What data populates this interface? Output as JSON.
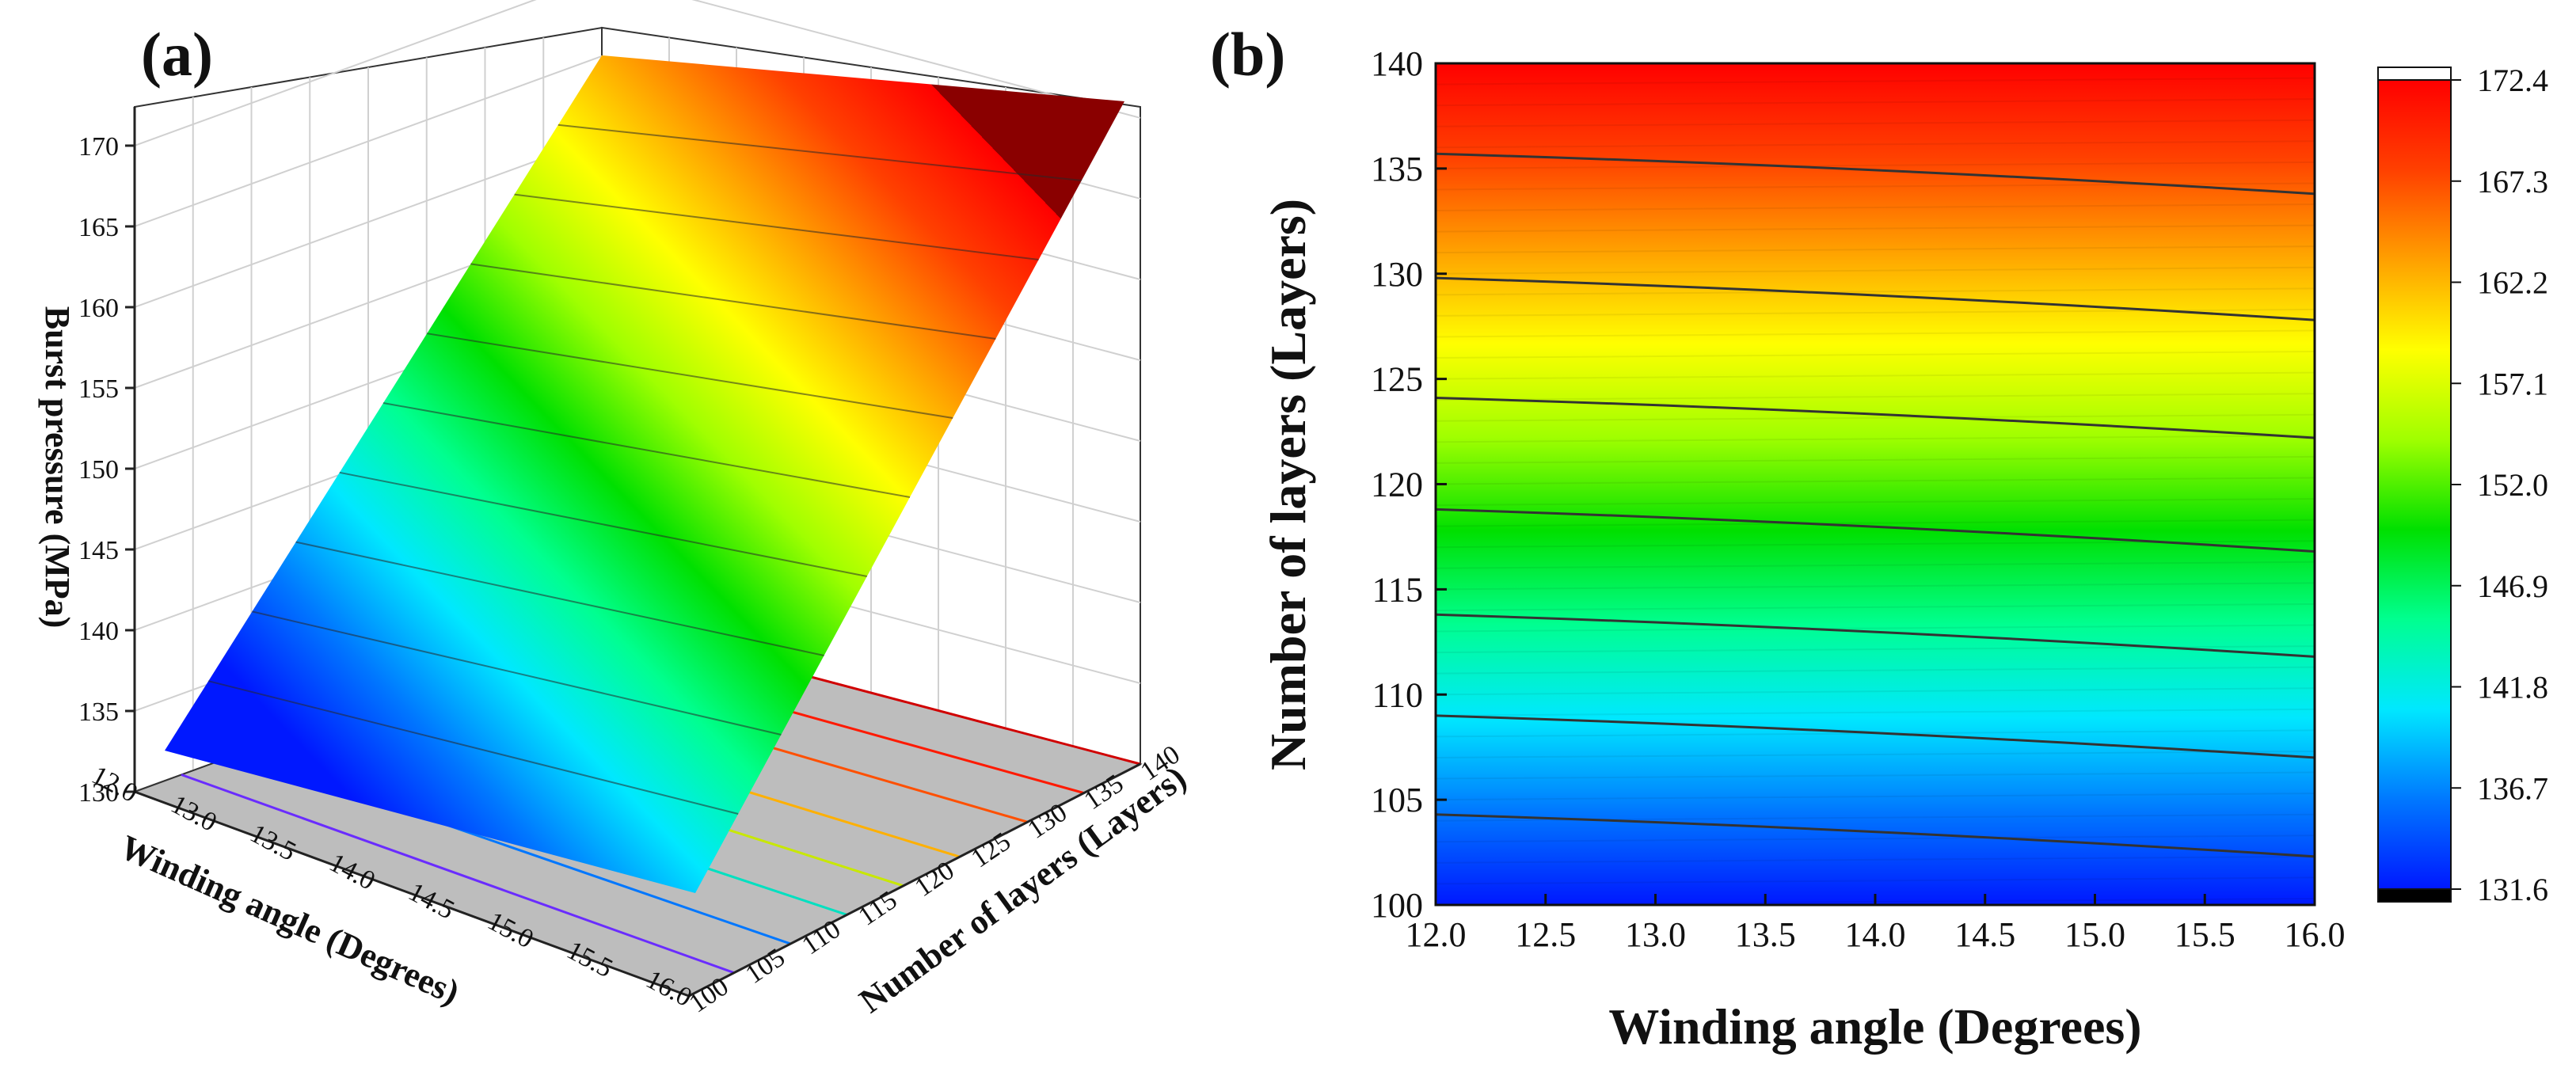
{
  "chart_data": [
    {
      "panel": "(a)",
      "type": "surface3d",
      "title": "",
      "x_axis": {
        "label": "Winding angle (Degrees)",
        "range": [
          12.0,
          16.0
        ],
        "ticks": [
          "12.0",
          "13.0",
          "13.5",
          "14.0",
          "14.5",
          "15.0",
          "15.5",
          "16.0"
        ]
      },
      "y_axis": {
        "label": "Number of layers (Layers)",
        "range": [
          100,
          140
        ],
        "ticks": [
          "100",
          "105",
          "110",
          "115",
          "120",
          "125",
          "130",
          "135",
          "140"
        ]
      },
      "z_axis": {
        "label": "Burst pressure (MPa)",
        "range": [
          130,
          172.4
        ],
        "ticks": [
          "130",
          "135",
          "140",
          "145",
          "150",
          "155",
          "160",
          "165",
          "170"
        ]
      },
      "surface_corners": [
        {
          "winding_angle": 12.0,
          "layers": 100,
          "burst_pressure": 132.5
        },
        {
          "winding_angle": 16.0,
          "layers": 100,
          "burst_pressure": 131.6
        },
        {
          "winding_angle": 12.0,
          "layers": 140,
          "burst_pressure": 172.4
        },
        {
          "winding_angle": 16.0,
          "layers": 140,
          "burst_pressure": 171.3
        }
      ],
      "floor_contour_layers": [
        104,
        109,
        114,
        119,
        124,
        130,
        135,
        140
      ],
      "floor_contour_colors": [
        "#6a2cff",
        "#0077ff",
        "#00e0c0",
        "#c8e800",
        "#ffb000",
        "#ff5000",
        "#ff1a00",
        "#d00000"
      ]
    },
    {
      "panel": "(b)",
      "type": "contour",
      "title": "",
      "xlabel": "Winding angle (Degrees)",
      "ylabel": "Number of layers (Layers)",
      "xlim": [
        12.0,
        16.0
      ],
      "ylim": [
        100,
        140
      ],
      "x_ticks": [
        "12.0",
        "12.5",
        "13.0",
        "13.5",
        "14.0",
        "14.5",
        "15.0",
        "15.5",
        "16.0"
      ],
      "y_ticks": [
        "100",
        "105",
        "110",
        "115",
        "120",
        "125",
        "130",
        "135",
        "140"
      ],
      "contour_lines": [
        {
          "layers_at_12": 104.3,
          "layers_at_16": 102.3
        },
        {
          "layers_at_12": 109.0,
          "layers_at_16": 107.0
        },
        {
          "layers_at_12": 113.8,
          "layers_at_16": 111.8
        },
        {
          "layers_at_12": 118.8,
          "layers_at_16": 116.8
        },
        {
          "layers_at_12": 124.1,
          "layers_at_16": 122.2
        },
        {
          "layers_at_12": 129.8,
          "layers_at_16": 127.8
        },
        {
          "layers_at_12": 135.7,
          "layers_at_16": 133.8
        }
      ],
      "colorbar": {
        "min": 131.6,
        "max": 172.4,
        "ticks": [
          "131.6",
          "136.7",
          "141.8",
          "146.9",
          "152.0",
          "157.1",
          "162.2",
          "167.3",
          "172.4"
        ],
        "colors": [
          "#0018ff",
          "#0078ff",
          "#00e8ff",
          "#00ff90",
          "#00e000",
          "#a0ff00",
          "#ffff00",
          "#ffa000",
          "#ff4000",
          "#ff0000"
        ],
        "under_color": "#000000",
        "over_color": "#ffffff"
      }
    }
  ]
}
